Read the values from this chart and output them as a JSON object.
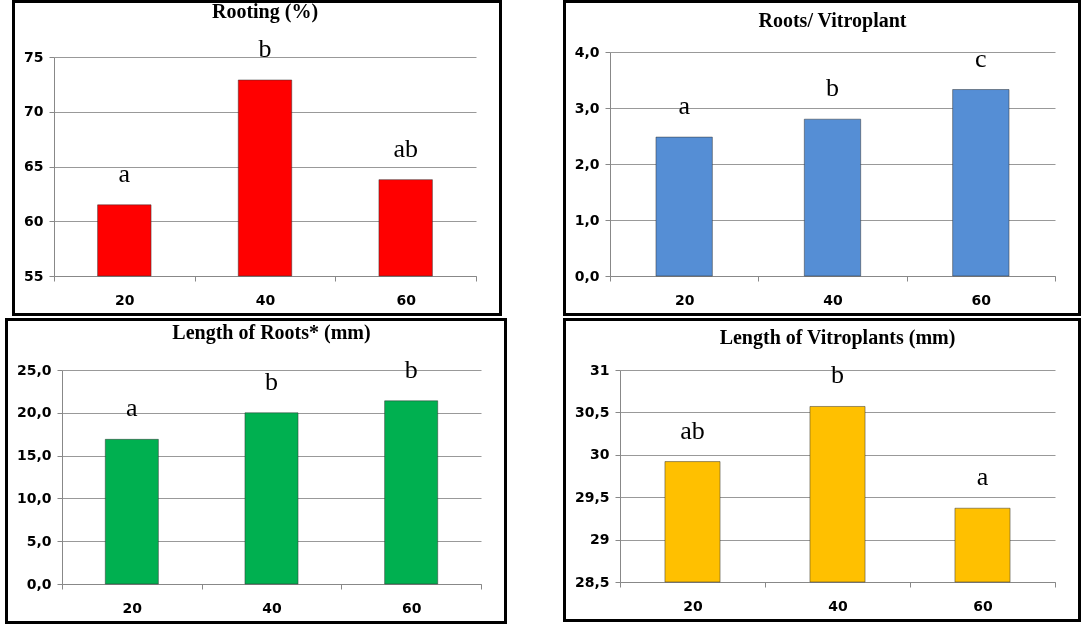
{
  "chart_data": [
    {
      "type": "bar",
      "title": "Rooting (%)",
      "categories": [
        "20",
        "40",
        "60"
      ],
      "values": [
        61.5,
        72.9,
        63.8
      ],
      "color": "#ff0000",
      "ylim": [
        55,
        75
      ],
      "yticks": [
        55,
        60,
        65,
        70,
        75
      ],
      "grid": "y",
      "legend": false,
      "annotations": [
        {
          "text": "a",
          "x": "20",
          "y": 61.5
        },
        {
          "text": "b",
          "x": "40",
          "y": 72.9
        },
        {
          "text": "ab",
          "x": "60",
          "y": 63.8
        }
      ]
    },
    {
      "type": "bar",
      "title": "Roots/ Vitroplant",
      "categories": [
        "20",
        "40",
        "60"
      ],
      "values": [
        2.48,
        2.8,
        3.33
      ],
      "color": "#558ed5",
      "ylim": [
        0,
        4
      ],
      "yticks": [
        {
          "value": 0,
          "label": "0,0"
        },
        {
          "value": 1,
          "label": "1,0"
        },
        {
          "value": 2,
          "label": "2,0"
        },
        {
          "value": 3,
          "label": "3,0"
        },
        {
          "value": 4,
          "label": "4,0"
        }
      ],
      "grid": "y",
      "legend": false,
      "annotations": [
        {
          "text": "a",
          "x": "20",
          "y": 2.48
        },
        {
          "text": "b",
          "x": "40",
          "y": 2.8
        },
        {
          "text": "c",
          "x": "60",
          "y": 3.33
        }
      ]
    },
    {
      "type": "bar",
      "title": "Length of Roots* (mm)",
      "categories": [
        "20",
        "40",
        "60"
      ],
      "values": [
        16.9,
        20,
        21.4
      ],
      "color": "#00b050",
      "ylim": [
        0,
        25
      ],
      "yticks": [
        {
          "value": 0,
          "label": "0,0"
        },
        {
          "value": 5,
          "label": "5,0"
        },
        {
          "value": 10,
          "label": "10,0"
        },
        {
          "value": 15,
          "label": "15,0"
        },
        {
          "value": 20,
          "label": "20,0"
        },
        {
          "value": 25,
          "label": "25,0"
        }
      ],
      "grid": "y",
      "legend": false,
      "annotations": [
        {
          "text": "a",
          "x": "20",
          "y": 16.9
        },
        {
          "text": "b",
          "x": "40",
          "y": 20
        },
        {
          "text": "b",
          "x": "60",
          "y": 21.4
        }
      ]
    },
    {
      "type": "bar",
      "title": "Length of Vitroplants (mm)",
      "categories": [
        "20",
        "40",
        "60"
      ],
      "values": [
        29.92,
        30.57,
        29.37
      ],
      "color": "#ffc000",
      "ylim": [
        28.5,
        31
      ],
      "yticks": [
        {
          "value": 28.5,
          "label": "28,5"
        },
        29,
        {
          "value": 29.5,
          "label": "29,5"
        },
        30,
        {
          "value": 30.5,
          "label": "30,5"
        },
        31
      ],
      "grid": "y",
      "legend": false,
      "annotations": [
        {
          "text": "ab",
          "x": "20",
          "y": 29.92
        },
        {
          "text": "b",
          "x": "40",
          "y": 30.57
        },
        {
          "text": "a",
          "x": "60",
          "y": 29.37
        }
      ]
    }
  ]
}
